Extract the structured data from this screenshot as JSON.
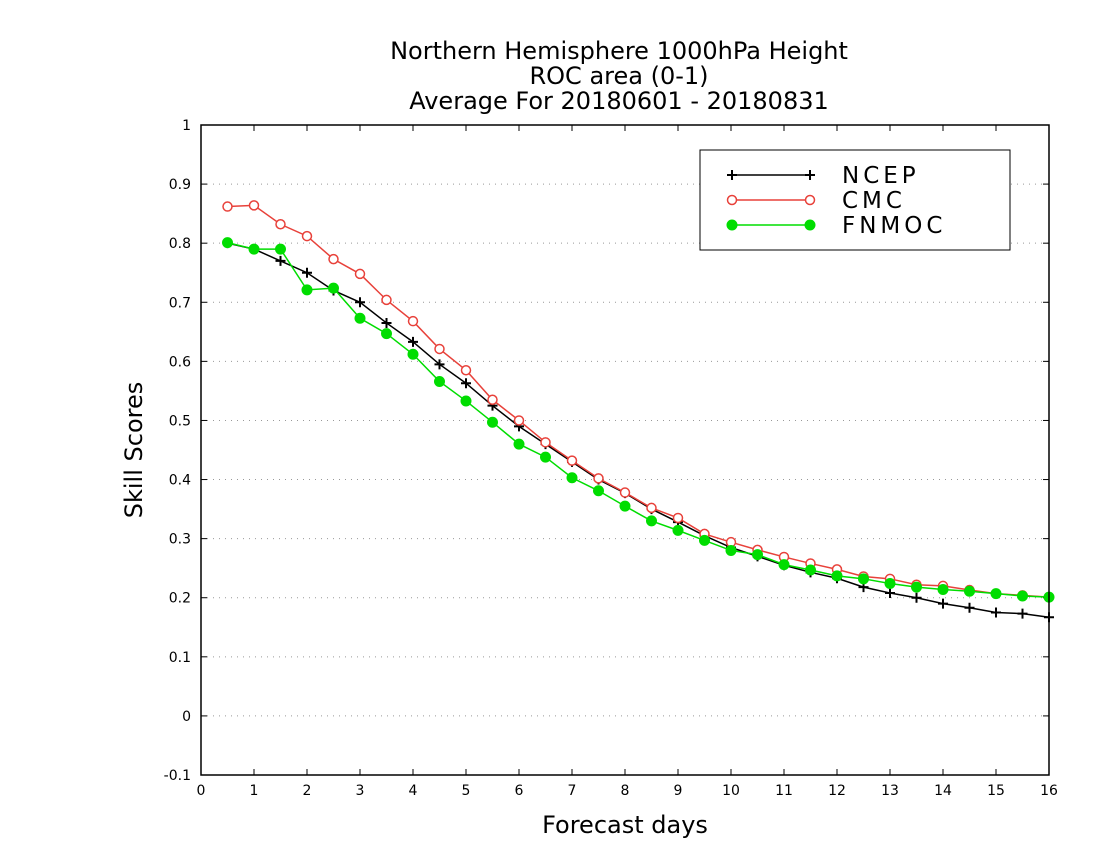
{
  "chart_data": {
    "type": "line",
    "title": [
      "Northern Hemisphere 1000hPa Height",
      "ROC area (0-1)",
      "Average For 20180601 - 20180831"
    ],
    "xlabel": "Forecast days",
    "ylabel": "Skill Scores",
    "xlim": [
      0,
      16
    ],
    "ylim": [
      -0.1,
      1
    ],
    "xticks": [
      "0",
      "1",
      "2",
      "3",
      "4",
      "5",
      "6",
      "7",
      "8",
      "9",
      "10",
      "11",
      "12",
      "13",
      "14",
      "15",
      "16"
    ],
    "yticks": [
      "-0.1",
      "0",
      "0.1",
      "0.2",
      "0.3",
      "0.4",
      "0.5",
      "0.6",
      "0.7",
      "0.8",
      "0.9",
      "1"
    ],
    "grid": true,
    "legend_position": "top-right",
    "x": [
      0.5,
      1,
      1.5,
      2,
      2.5,
      3,
      3.5,
      4,
      4.5,
      5,
      5.5,
      6,
      6.5,
      7,
      7.5,
      8,
      8.5,
      9,
      9.5,
      10,
      10.5,
      11,
      11.5,
      12,
      12.5,
      13,
      13.5,
      14,
      14.5,
      15,
      15.5,
      16
    ],
    "series": [
      {
        "name": "NCEP",
        "color": "#000000",
        "marker": "plus",
        "values": [
          0.8,
          0.79,
          0.77,
          0.75,
          0.72,
          0.7,
          0.665,
          0.633,
          0.595,
          0.563,
          0.525,
          0.49,
          0.46,
          0.43,
          0.4,
          0.377,
          0.35,
          0.328,
          0.305,
          0.285,
          0.27,
          0.255,
          0.243,
          0.233,
          0.218,
          0.208,
          0.2,
          0.19,
          0.183,
          0.175,
          0.173,
          0.167
        ]
      },
      {
        "name": "CMC",
        "color": "#e8413a",
        "marker": "open-circle",
        "values": [
          0.862,
          0.864,
          0.832,
          0.812,
          0.773,
          0.748,
          0.704,
          0.668,
          0.621,
          0.585,
          0.535,
          0.5,
          0.463,
          0.432,
          0.402,
          0.378,
          0.352,
          0.335,
          0.308,
          0.294,
          0.281,
          0.269,
          0.258,
          0.248,
          0.236,
          0.232,
          0.222,
          0.22,
          0.213,
          0.207,
          0.204,
          0.201
        ]
      },
      {
        "name": "FNMOC",
        "color": "#00dd00",
        "marker": "filled-circle",
        "values": [
          0.801,
          0.79,
          0.79,
          0.721,
          0.724,
          0.673,
          0.647,
          0.612,
          0.566,
          0.533,
          0.497,
          0.46,
          0.438,
          0.403,
          0.381,
          0.355,
          0.33,
          0.314,
          0.297,
          0.28,
          0.273,
          0.256,
          0.247,
          0.237,
          0.232,
          0.224,
          0.218,
          0.214,
          0.211,
          0.207,
          0.203,
          0.201
        ]
      }
    ]
  }
}
